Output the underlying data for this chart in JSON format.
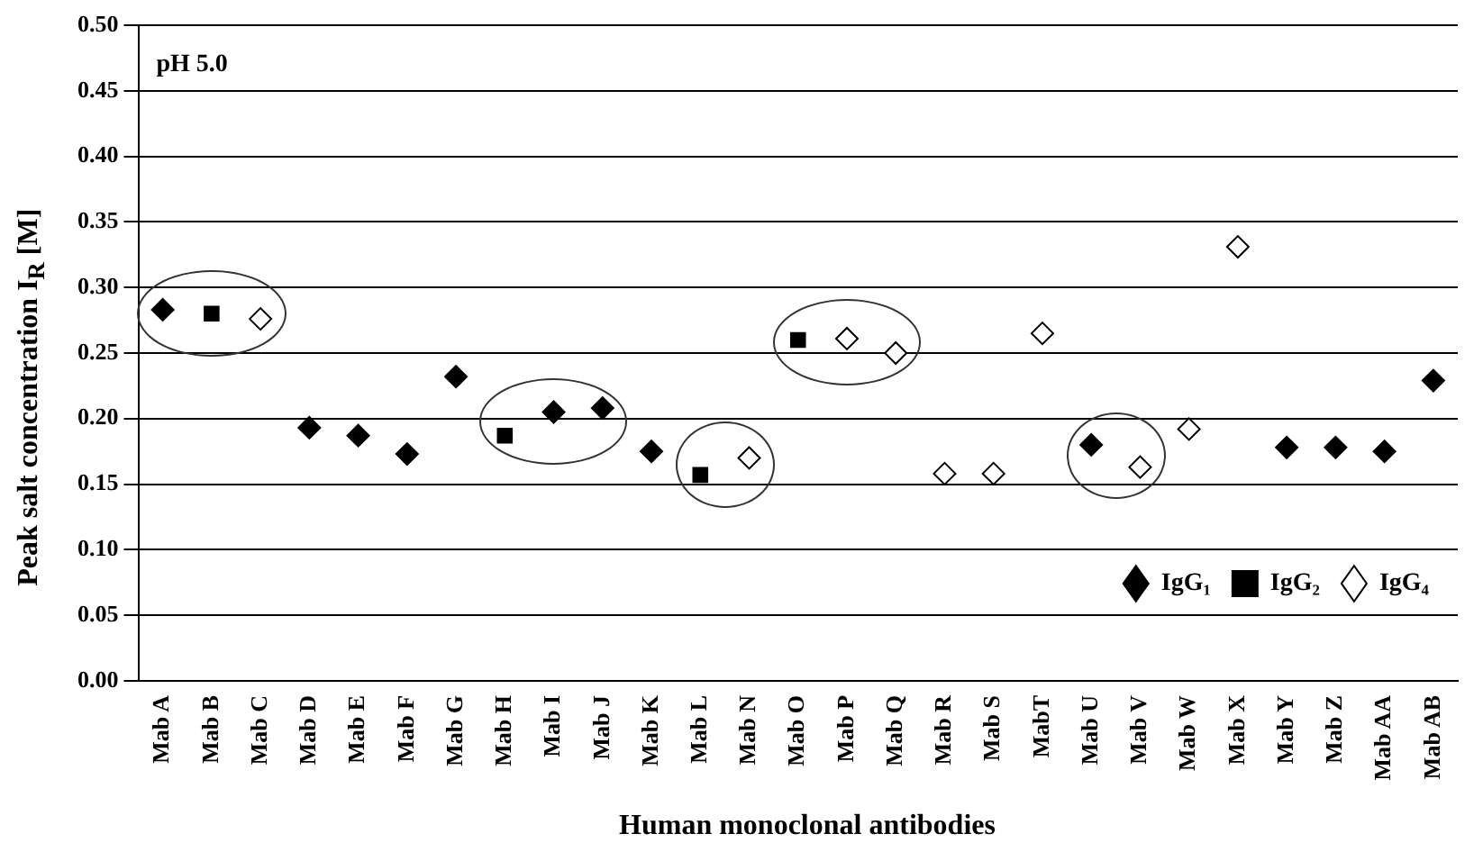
{
  "chart_data": {
    "type": "scatter",
    "title": "pH 5.0",
    "xlabel": "Human monoclonal antibodies",
    "ylabel": "Peak salt concentration I$_{R}$ [M]",
    "categories": [
      "Mab A",
      "Mab B",
      "Mab C",
      "Mab D",
      "Mab E",
      "Mab F",
      "Mab G",
      "Mab H",
      "Mab I",
      "Mab J",
      "Mab K",
      "Mab L",
      "Mab N",
      "Mab O",
      "Mab P",
      "Mab Q",
      "Mab R",
      "Mab S",
      "MabT",
      "Mab U",
      "Mab V",
      "Mab W",
      "Mab X",
      "Mab Y",
      "Mab Z",
      "Mab AA",
      "Mab AB"
    ],
    "series": [
      {
        "name": "IgG₁",
        "color": "#000000",
        "marker": "diamond",
        "values": [
          0.283,
          null,
          null,
          0.193,
          0.187,
          0.173,
          0.232,
          null,
          0.205,
          0.208,
          0.175,
          null,
          null,
          null,
          null,
          null,
          null,
          null,
          null,
          0.18,
          null,
          null,
          null,
          0.178,
          0.178,
          0.175,
          0.229
        ]
      },
      {
        "name": "IgG₂",
        "color": "#000000",
        "marker": "square",
        "values": [
          null,
          0.28,
          null,
          null,
          null,
          null,
          null,
          0.187,
          null,
          null,
          null,
          0.157,
          null,
          0.26,
          null,
          null,
          null,
          null,
          null,
          null,
          null,
          null,
          null,
          null,
          null,
          null,
          null
        ]
      },
      {
        "name": "IgG₄",
        "color": "#ffffff",
        "marker": "diamond",
        "values": [
          null,
          null,
          0.276,
          null,
          null,
          null,
          null,
          null,
          null,
          null,
          null,
          null,
          0.17,
          null,
          0.261,
          0.25,
          0.158,
          0.158,
          0.265,
          null,
          0.163,
          0.192,
          0.331,
          null,
          null,
          null,
          null
        ]
      }
    ],
    "ylim": [
      0,
      0.5
    ],
    "yticks": [
      {
        "value": 0,
        "label": "0.00"
      },
      {
        "value": 0.05,
        "label": "0.05"
      },
      {
        "value": 0.1,
        "label": "0.10"
      },
      {
        "value": 0.15,
        "label": "0.15"
      },
      {
        "value": 0.2,
        "label": "0.20"
      },
      {
        "value": 0.25,
        "label": "0.25"
      },
      {
        "value": 0.3,
        "label": "0.30"
      },
      {
        "value": 0.35,
        "label": "0.35"
      },
      {
        "value": 0.4,
        "label": "0.40"
      },
      {
        "value": 0.45,
        "label": "0.45"
      },
      {
        "value": 0.5,
        "label": "0.50"
      }
    ],
    "grid": "y",
    "legend": "bottom right"
  }
}
